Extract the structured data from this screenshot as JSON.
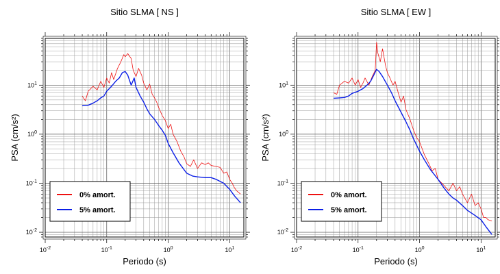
{
  "chart_data": [
    {
      "type": "line",
      "title": "Sitio SLMA [ NS ]",
      "xlabel": "Periodo (s)",
      "ylabel": "PSA (cm/s²)",
      "xscale": "log",
      "yscale": "log",
      "xlim": [
        0.01,
        17
      ],
      "ylim": [
        0.008,
        90
      ],
      "grid": true,
      "legend_position": "bottom-left",
      "x_ticks": [
        {
          "v": 0.01,
          "b": "10",
          "e": "-2"
        },
        {
          "v": 0.1,
          "b": "10",
          "e": "-1"
        },
        {
          "v": 1,
          "b": "10",
          "e": "0"
        },
        {
          "v": 10,
          "b": "10",
          "e": "1"
        }
      ],
      "y_ticks": [
        {
          "v": 0.01,
          "b": "10",
          "e": "-2"
        },
        {
          "v": 0.1,
          "b": "10",
          "e": "-1"
        },
        {
          "v": 1,
          "b": "10",
          "e": "0"
        },
        {
          "v": 10,
          "b": "10",
          "e": "1"
        }
      ],
      "series": [
        {
          "name": "0% amort.",
          "color": "#ee1111",
          "width": 0.8,
          "x": [
            0.04,
            0.045,
            0.05,
            0.06,
            0.07,
            0.08,
            0.09,
            0.1,
            0.11,
            0.12,
            0.13,
            0.15,
            0.17,
            0.19,
            0.2,
            0.22,
            0.25,
            0.27,
            0.3,
            0.33,
            0.37,
            0.4,
            0.45,
            0.5,
            0.55,
            0.6,
            0.65,
            0.7,
            0.8,
            0.9,
            1.0,
            1.1,
            1.2,
            1.4,
            1.6,
            1.8,
            2.0,
            2.3,
            2.6,
            3.0,
            3.5,
            4.0,
            4.5,
            5.0,
            6.0,
            7.0,
            8.0,
            9.0,
            10.0,
            11.0,
            12.0,
            13.0,
            15.0
          ],
          "y": [
            6.0,
            4.8,
            7.5,
            9.5,
            8.0,
            12.0,
            9.0,
            14.0,
            11.0,
            18.0,
            13.0,
            22.0,
            30.0,
            42.0,
            38.0,
            44.0,
            35.0,
            20.0,
            15.0,
            22.0,
            16.0,
            11.0,
            8.0,
            10.5,
            6.5,
            5.5,
            4.5,
            3.5,
            2.4,
            1.9,
            1.3,
            1.6,
            1.0,
            0.7,
            0.45,
            0.35,
            0.25,
            0.22,
            0.3,
            0.2,
            0.26,
            0.24,
            0.26,
            0.23,
            0.22,
            0.21,
            0.16,
            0.17,
            0.12,
            0.1,
            0.08,
            0.07,
            0.06
          ]
        },
        {
          "name": "5% amort.",
          "color": "#0a1ee6",
          "width": 1.4,
          "x": [
            0.04,
            0.045,
            0.05,
            0.06,
            0.07,
            0.08,
            0.09,
            0.1,
            0.12,
            0.14,
            0.16,
            0.18,
            0.2,
            0.22,
            0.25,
            0.28,
            0.3,
            0.35,
            0.4,
            0.45,
            0.5,
            0.6,
            0.7,
            0.8,
            0.9,
            1.0,
            1.2,
            1.5,
            2.0,
            2.5,
            3.0,
            4.0,
            5.0,
            6.0,
            8.0,
            10.0,
            12.0,
            15.0
          ],
          "y": [
            3.8,
            3.85,
            3.9,
            4.3,
            4.8,
            5.5,
            6.0,
            7.5,
            9.5,
            12.0,
            14.0,
            18.0,
            19.0,
            16.0,
            10.0,
            14.0,
            9.0,
            6.0,
            4.5,
            3.3,
            2.6,
            2.0,
            1.5,
            1.2,
            0.95,
            0.65,
            0.42,
            0.26,
            0.16,
            0.14,
            0.135,
            0.13,
            0.13,
            0.12,
            0.1,
            0.075,
            0.055,
            0.04
          ]
        }
      ]
    },
    {
      "type": "line",
      "title": "Sitio SLMA [ EW ]",
      "xlabel": "Periodo (s)",
      "ylabel": "PSA (cm/s²)",
      "xscale": "log",
      "yscale": "log",
      "xlim": [
        0.01,
        17
      ],
      "ylim": [
        0.008,
        90
      ],
      "grid": true,
      "legend_position": "bottom-left",
      "x_ticks": [
        {
          "v": 0.01,
          "b": "10",
          "e": "-2"
        },
        {
          "v": 0.1,
          "b": "10",
          "e": "-1"
        },
        {
          "v": 1,
          "b": "10",
          "e": "0"
        },
        {
          "v": 10,
          "b": "10",
          "e": "1"
        }
      ],
      "y_ticks": [
        {
          "v": 0.01,
          "b": "10",
          "e": "-2"
        },
        {
          "v": 0.1,
          "b": "10",
          "e": "-1"
        },
        {
          "v": 1,
          "b": "10",
          "e": "0"
        },
        {
          "v": 10,
          "b": "10",
          "e": "1"
        }
      ],
      "series": [
        {
          "name": "0% amort.",
          "color": "#ee1111",
          "width": 0.8,
          "x": [
            0.04,
            0.045,
            0.05,
            0.06,
            0.07,
            0.08,
            0.09,
            0.1,
            0.11,
            0.12,
            0.13,
            0.15,
            0.17,
            0.19,
            0.2,
            0.21,
            0.23,
            0.25,
            0.28,
            0.3,
            0.33,
            0.37,
            0.4,
            0.45,
            0.5,
            0.55,
            0.6,
            0.7,
            0.8,
            0.9,
            1.0,
            1.2,
            1.4,
            1.6,
            1.8,
            2.0,
            2.5,
            3.0,
            3.5,
            4.0,
            4.5,
            5.0,
            6.0,
            7.0,
            8.0,
            9.0,
            10.0,
            11.0,
            12.0,
            13.0,
            15.0
          ],
          "y": [
            7.0,
            6.5,
            10.0,
            12.0,
            11.0,
            14.0,
            10.0,
            13.0,
            9.0,
            11.0,
            14.0,
            10.0,
            15.0,
            20.0,
            75.0,
            45.0,
            30.0,
            55.0,
            25.0,
            18.0,
            14.0,
            10.0,
            12.0,
            7.0,
            4.5,
            6.0,
            3.2,
            2.0,
            1.2,
            0.85,
            0.7,
            0.38,
            0.26,
            0.18,
            0.2,
            0.12,
            0.09,
            0.07,
            0.1,
            0.07,
            0.085,
            0.06,
            0.04,
            0.06,
            0.035,
            0.04,
            0.03,
            0.02,
            0.02,
            0.018,
            0.017
          ]
        },
        {
          "name": "5% amort.",
          "color": "#0a1ee6",
          "width": 1.4,
          "x": [
            0.04,
            0.05,
            0.06,
            0.07,
            0.08,
            0.1,
            0.12,
            0.14,
            0.16,
            0.18,
            0.2,
            0.22,
            0.25,
            0.3,
            0.35,
            0.4,
            0.5,
            0.6,
            0.7,
            0.8,
            1.0,
            1.2,
            1.5,
            2.0,
            2.5,
            3.0,
            3.5,
            4.0,
            5.0,
            6.0,
            8.0,
            10.0,
            12.0,
            15.0
          ],
          "y": [
            5.4,
            5.5,
            5.6,
            6.0,
            6.8,
            7.5,
            8.5,
            10.0,
            12.0,
            16.0,
            21.0,
            19.0,
            15.0,
            10.0,
            7.0,
            4.8,
            2.8,
            1.8,
            1.2,
            0.8,
            0.45,
            0.3,
            0.19,
            0.12,
            0.08,
            0.06,
            0.05,
            0.045,
            0.035,
            0.028,
            0.022,
            0.018,
            0.013,
            0.009
          ]
        }
      ]
    }
  ]
}
